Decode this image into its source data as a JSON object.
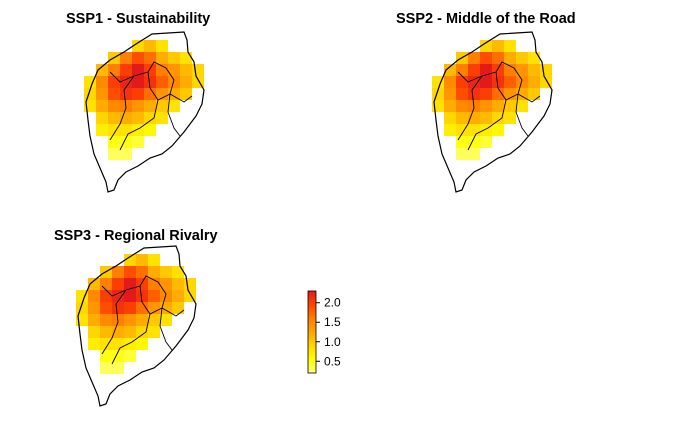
{
  "panels": [
    {
      "title": "SSP1 - Sustainability"
    },
    {
      "title": "SSP2 - Middle of the Road"
    },
    {
      "title": "SSP3 - Regional Rivalry"
    }
  ],
  "chart_data": {
    "type": "heatmap",
    "value_range": [
      0.2,
      2.3
    ],
    "grid_origin": [
      0,
      0
    ],
    "cell_size": [
      1,
      1
    ],
    "legend": {
      "ticks": [
        2.0,
        1.5,
        1.0,
        0.5
      ],
      "tick_labels": [
        "2.0",
        "1.5",
        "1.0",
        "0.5"
      ],
      "palette": [
        "#ffff80",
        "#ffff00",
        "#ffd700",
        "#ffa500",
        "#ff7f00",
        "#ff4500",
        "#e31a1c"
      ]
    },
    "maps": [
      {
        "panel": "SSP1 - Sustainability",
        "cells": [
          [
            null,
            null,
            null,
            null,
            0.9,
            1.1,
            0.8,
            null,
            null,
            null,
            null
          ],
          [
            null,
            null,
            1.0,
            1.6,
            1.9,
            1.7,
            1.2,
            1.0,
            0.8,
            null,
            null
          ],
          [
            null,
            1.1,
            1.6,
            2.0,
            2.3,
            2.0,
            1.6,
            1.4,
            1.1,
            0.9,
            null
          ],
          [
            0.8,
            1.5,
            2.0,
            2.2,
            2.3,
            2.1,
            1.8,
            1.5,
            1.2,
            0.9,
            null
          ],
          [
            0.9,
            1.4,
            1.9,
            2.1,
            2.0,
            1.7,
            1.4,
            1.2,
            1.0,
            null,
            null
          ],
          [
            0.8,
            1.2,
            1.5,
            1.6,
            1.4,
            1.2,
            1.0,
            0.8,
            null,
            null,
            null
          ],
          [
            null,
            0.9,
            1.1,
            1.2,
            1.1,
            0.9,
            0.8,
            null,
            null,
            null,
            null
          ],
          [
            null,
            0.7,
            0.8,
            0.8,
            0.7,
            0.6,
            null,
            null,
            null,
            null,
            null
          ],
          [
            null,
            null,
            0.5,
            0.5,
            0.4,
            null,
            null,
            null,
            null,
            null,
            null
          ],
          [
            null,
            null,
            0.3,
            0.3,
            null,
            null,
            null,
            null,
            null,
            null,
            null
          ]
        ]
      },
      {
        "panel": "SSP2 - Middle of the Road",
        "cells": [
          [
            null,
            null,
            null,
            null,
            0.9,
            1.1,
            0.8,
            null,
            null,
            null,
            null
          ],
          [
            null,
            null,
            1.0,
            1.6,
            1.9,
            1.7,
            1.2,
            1.0,
            0.8,
            null,
            null
          ],
          [
            null,
            1.1,
            1.6,
            2.0,
            2.3,
            2.0,
            1.6,
            1.4,
            1.1,
            0.9,
            null
          ],
          [
            0.8,
            1.5,
            2.0,
            2.2,
            2.3,
            2.1,
            1.8,
            1.5,
            1.2,
            0.9,
            null
          ],
          [
            0.9,
            1.4,
            1.9,
            2.1,
            2.0,
            1.7,
            1.4,
            1.2,
            1.0,
            null,
            null
          ],
          [
            0.8,
            1.2,
            1.5,
            1.6,
            1.4,
            1.2,
            1.0,
            0.8,
            null,
            null,
            null
          ],
          [
            null,
            0.9,
            1.1,
            1.2,
            1.1,
            0.9,
            0.8,
            null,
            null,
            null,
            null
          ],
          [
            null,
            0.7,
            0.8,
            0.8,
            0.7,
            0.6,
            null,
            null,
            null,
            null,
            null
          ],
          [
            null,
            null,
            0.5,
            0.5,
            0.4,
            null,
            null,
            null,
            null,
            null,
            null
          ],
          [
            null,
            null,
            0.3,
            0.3,
            null,
            null,
            null,
            null,
            null,
            null,
            null
          ]
        ]
      },
      {
        "panel": "SSP3 - Regional Rivalry",
        "cells": [
          [
            null,
            null,
            null,
            null,
            0.9,
            1.1,
            0.8,
            null,
            null,
            null,
            null
          ],
          [
            null,
            null,
            1.0,
            1.6,
            1.9,
            1.7,
            1.2,
            1.0,
            0.8,
            null,
            null
          ],
          [
            null,
            1.1,
            1.6,
            2.0,
            2.3,
            2.0,
            1.6,
            1.4,
            1.1,
            0.9,
            null
          ],
          [
            0.8,
            1.5,
            2.0,
            2.2,
            2.3,
            2.1,
            1.8,
            1.5,
            1.2,
            0.9,
            null
          ],
          [
            0.9,
            1.4,
            1.9,
            2.1,
            2.0,
            1.7,
            1.4,
            1.2,
            1.0,
            null,
            null
          ],
          [
            0.8,
            1.2,
            1.5,
            1.6,
            1.4,
            1.2,
            1.0,
            0.8,
            null,
            null,
            null
          ],
          [
            null,
            0.9,
            1.1,
            1.2,
            1.1,
            0.9,
            0.8,
            null,
            null,
            null,
            null
          ],
          [
            null,
            0.7,
            0.8,
            0.8,
            0.7,
            0.6,
            null,
            null,
            null,
            null,
            null
          ],
          [
            null,
            null,
            0.5,
            0.5,
            0.4,
            null,
            null,
            null,
            null,
            null,
            null
          ],
          [
            null,
            null,
            0.3,
            0.3,
            null,
            null,
            null,
            null,
            null,
            null,
            null
          ]
        ]
      }
    ]
  }
}
